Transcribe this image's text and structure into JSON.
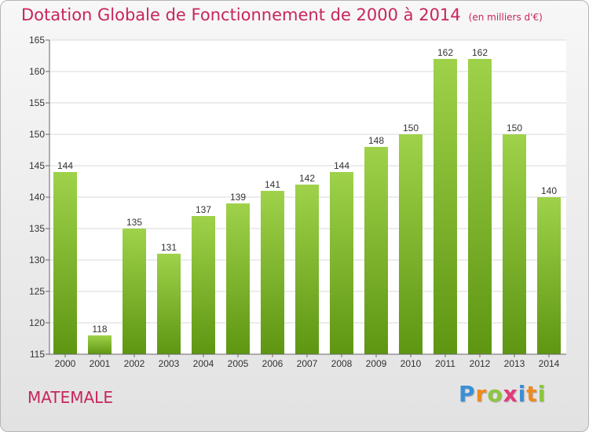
{
  "header": {
    "title": "Dotation Globale de Fonctionnement de 2000 à 2014",
    "subtitle": "(en milliers d'€)"
  },
  "commune": "MATEMALE",
  "brand": {
    "name": "Proxiti",
    "letters": [
      {
        "ch": "P",
        "color": "#3b8fd6"
      },
      {
        "ch": "r",
        "color": "#f08a1c"
      },
      {
        "ch": "o",
        "color": "#8cc63f"
      },
      {
        "ch": "x",
        "color": "#e23a7a"
      },
      {
        "ch": "i",
        "color": "#3b8fd6"
      },
      {
        "ch": "t",
        "color": "#f08a1c"
      },
      {
        "ch": "i",
        "color": "#8cc63f"
      }
    ]
  },
  "colors": {
    "title": "#c8255c",
    "bar_top": "#9fd24a",
    "bar_bottom": "#5e9612"
  },
  "chart_data": {
    "type": "bar",
    "title": "Dotation Globale de Fonctionnement de 2000 à 2014",
    "subtitle": "(en milliers d'€)",
    "categories": [
      "2000",
      "2001",
      "2002",
      "2003",
      "2004",
      "2005",
      "2006",
      "2007",
      "2008",
      "2009",
      "2010",
      "2011",
      "2012",
      "2013",
      "2014"
    ],
    "values": [
      144,
      118,
      135,
      131,
      137,
      139,
      141,
      142,
      144,
      148,
      150,
      162,
      162,
      150,
      140
    ],
    "ylim": [
      115,
      165
    ],
    "yticks": [
      115,
      120,
      125,
      130,
      135,
      140,
      145,
      150,
      155,
      160,
      165
    ],
    "grid": true,
    "legend": "none"
  }
}
